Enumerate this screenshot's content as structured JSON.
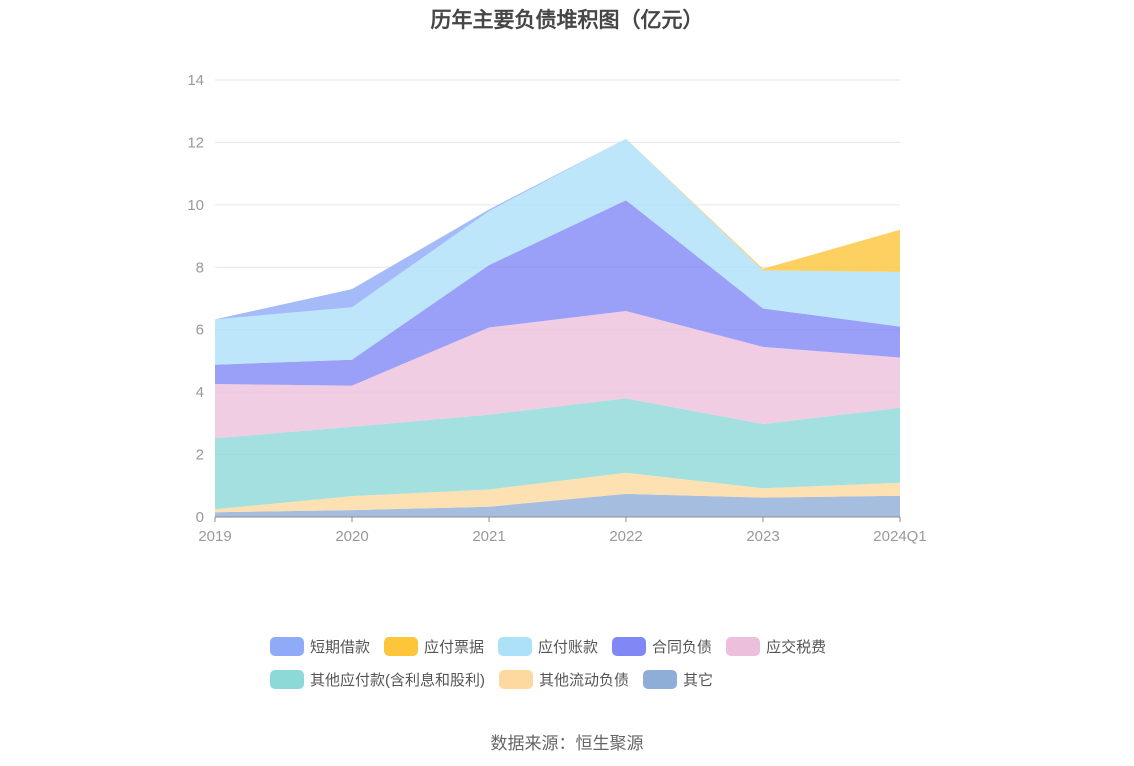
{
  "chart_data": {
    "type": "area",
    "stacked": true,
    "title": "历年主要负债堆积图（亿元）",
    "xlabel": "",
    "ylabel": "",
    "categories": [
      "2019",
      "2020",
      "2021",
      "2022",
      "2023",
      "2024Q1"
    ],
    "ylim": [
      0,
      14
    ],
    "yticks": [
      0,
      2,
      4,
      6,
      8,
      10,
      12,
      14
    ],
    "grid": true,
    "legend_position": "bottom",
    "series": [
      {
        "name": "其它",
        "color": "#8eaed8",
        "values": [
          0.15,
          0.22,
          0.33,
          0.74,
          0.62,
          0.68
        ]
      },
      {
        "name": "其他流动负债",
        "color": "#fdd9a0",
        "values": [
          0.1,
          0.45,
          0.55,
          0.68,
          0.3,
          0.42
        ]
      },
      {
        "name": "其他应付款(含利息和股利)",
        "color": "#8dd8d8",
        "values": [
          2.27,
          2.22,
          2.4,
          2.38,
          2.06,
          2.4
        ]
      },
      {
        "name": "应交税费",
        "color": "#ecc0dc",
        "values": [
          1.74,
          1.32,
          2.79,
          2.8,
          2.47,
          1.61
        ]
      },
      {
        "name": "合同负债",
        "color": "#8187f5",
        "values": [
          0.62,
          0.83,
          2.0,
          3.55,
          1.23,
          0.99
        ]
      },
      {
        "name": "应付账款",
        "color": "#ade0f9",
        "values": [
          1.45,
          1.68,
          1.73,
          1.97,
          1.22,
          1.75
        ]
      },
      {
        "name": "应付票据",
        "color": "#fcc53a",
        "values": [
          0,
          0,
          0,
          0,
          0.05,
          1.35
        ]
      },
      {
        "name": "短期借款",
        "color": "#8faaf7",
        "values": [
          0,
          0.58,
          0.05,
          0,
          0,
          0
        ]
      }
    ],
    "legend": [
      "短期借款",
      "应付票据",
      "应付账款",
      "合同负债",
      "应交税费",
      "其他应付款(含利息和股利)",
      "其他流动负债",
      "其它"
    ]
  },
  "source_text": "数据来源：恒生聚源"
}
